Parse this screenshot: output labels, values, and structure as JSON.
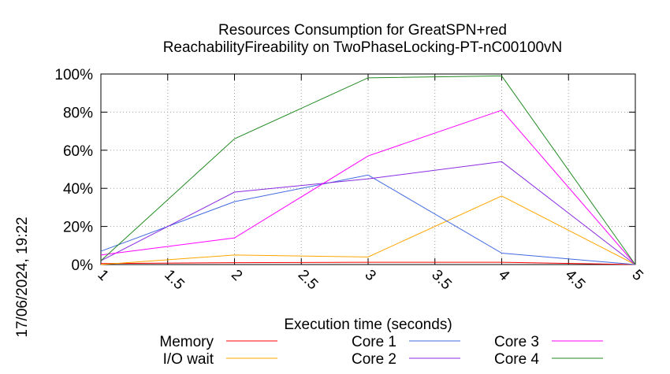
{
  "chart_data": {
    "type": "line",
    "title_line1": "Resources Consumption for GreatSPN+red",
    "title_line2": "ReachabilityFireability on TwoPhaseLocking-PT-nC00100vN",
    "xlabel": "Execution time (seconds)",
    "ylabel": "",
    "timestamp": "17/06/2024, 19:22",
    "xlim": [
      1,
      5
    ],
    "ylim": [
      0,
      100
    ],
    "grid": true,
    "legend_position": "bottom",
    "x_ticks": [
      "1",
      "1.5",
      "2",
      "2.5",
      "3",
      "3.5",
      "4",
      "4.5",
      "5"
    ],
    "x_tick_values": [
      1,
      1.5,
      2,
      2.5,
      3,
      3.5,
      4,
      4.5,
      5
    ],
    "y_ticks": [
      "0%",
      "20%",
      "40%",
      "60%",
      "80%",
      "100%"
    ],
    "y_tick_values": [
      0,
      20,
      40,
      60,
      80,
      100
    ],
    "x": [
      1,
      2,
      3,
      4,
      5
    ],
    "series": [
      {
        "name": "Memory",
        "color": "#ff0000",
        "values": [
          0.5,
          1,
          1.2,
          1.2,
          0
        ]
      },
      {
        "name": "I/O wait",
        "color": "#ffa500",
        "values": [
          0,
          5,
          4,
          36,
          0
        ]
      },
      {
        "name": "Core 1",
        "color": "#4169e1",
        "values": [
          7,
          33,
          47,
          6,
          0
        ]
      },
      {
        "name": "Core 2",
        "color": "#8a2be2",
        "values": [
          2,
          38,
          45,
          54,
          0
        ]
      },
      {
        "name": "Core 3",
        "color": "#ff00ff",
        "values": [
          5,
          14,
          57,
          81,
          0
        ]
      },
      {
        "name": "Core 4",
        "color": "#228b22",
        "values": [
          2,
          66,
          98,
          99,
          0
        ]
      }
    ]
  }
}
